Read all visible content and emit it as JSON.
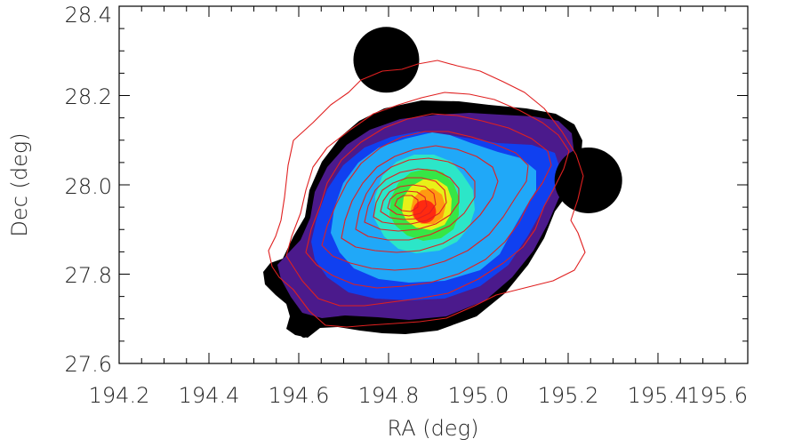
{
  "chart_data": {
    "type": "contour",
    "xlabel": "RA (deg)",
    "ylabel": "Dec (deg)",
    "xlim": [
      194.2,
      195.6
    ],
    "ylim": [
      27.6,
      28.4
    ],
    "xticks": [
      "194.2",
      "194.4",
      "194.6",
      "194.8",
      "195.0",
      "195.2",
      "195.4",
      "195.6"
    ],
    "yticks": [
      "27.6",
      "27.8",
      "28.0",
      "28.2",
      "28.4"
    ],
    "grid": false,
    "filled_levels": [
      {
        "level": 1,
        "color": "#000000"
      },
      {
        "level": 2,
        "color": "#4b1a8c"
      },
      {
        "level": 3,
        "color": "#1040f0"
      },
      {
        "level": 4,
        "color": "#20a8f8"
      },
      {
        "level": 5,
        "color": "#2ce6c8"
      },
      {
        "level": 6,
        "color": "#36e646"
      },
      {
        "level": 7,
        "color": "#e8f018"
      },
      {
        "level": 8,
        "color": "#ff9a10"
      },
      {
        "level": 9,
        "color": "#ff2a10"
      }
    ],
    "filled_peak": {
      "ra": 194.88,
      "dec": 27.94
    },
    "point_sources": [
      {
        "ra": 194.795,
        "dec": 28.28
      },
      {
        "ra": 195.245,
        "dec": 28.01
      }
    ],
    "line_contour_color": "#e02020",
    "line_contour_peak": {
      "ra": 194.83,
      "dec": 27.95
    },
    "line_contour_levels": 11
  }
}
